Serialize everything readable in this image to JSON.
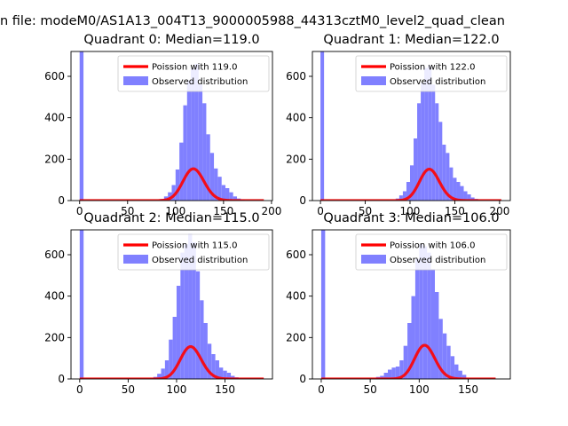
{
  "figure": {
    "suptitle": "n file: modeM0/AS1A13_004T13_9000005988_44313cztM0_level2_quad_clean"
  },
  "colors": {
    "observed": "#8080ff",
    "poisson": "#ff0000",
    "poisson_overlap": "#ff8080"
  },
  "chart_data": [
    {
      "type": "bar",
      "title": "Quadrant 0: Median=119.0",
      "xlim": [
        -9,
        201
      ],
      "ylim": [
        0,
        720
      ],
      "xticks": [
        0,
        50,
        100,
        150,
        200
      ],
      "yticks": [
        0,
        200,
        400,
        600
      ],
      "legend": {
        "placement": "top-right",
        "entries": [
          "Poission with 119.0",
          "Observed distribution"
        ]
      },
      "bin_width": 4.0,
      "hist_x": [
        0,
        84,
        88,
        92,
        96,
        100,
        104,
        108,
        112,
        116,
        120,
        124,
        128,
        132,
        136,
        140,
        144,
        148,
        152,
        156,
        160,
        164,
        168
      ],
      "hist_y": [
        720,
        8,
        20,
        40,
        75,
        150,
        280,
        460,
        580,
        640,
        660,
        560,
        470,
        320,
        230,
        155,
        115,
        75,
        60,
        40,
        20,
        10,
        5
      ],
      "poisson_mu": 119.0,
      "poisson_scale": 4200,
      "poisson_xmax": 192
    },
    {
      "type": "bar",
      "title": "Quadrant 1: Median=122.0",
      "xlim": [
        -9,
        212
      ],
      "ylim": [
        0,
        720
      ],
      "xticks": [
        0,
        50,
        100,
        150,
        200
      ],
      "yticks": [
        0,
        200,
        400,
        600
      ],
      "legend": {
        "placement": "top-right",
        "entries": [
          "Poission with 122.0",
          "Observed distribution"
        ]
      },
      "bin_width": 4.0,
      "hist_x": [
        0,
        84,
        88,
        92,
        96,
        100,
        104,
        108,
        112,
        116,
        120,
        124,
        128,
        132,
        136,
        140,
        144,
        148,
        152,
        156,
        160,
        164,
        168,
        172
      ],
      "hist_y": [
        720,
        10,
        25,
        45,
        90,
        170,
        300,
        470,
        570,
        640,
        650,
        560,
        470,
        380,
        270,
        230,
        160,
        110,
        90,
        70,
        45,
        30,
        15,
        8
      ],
      "poisson_mu": 122.0,
      "poisson_scale": 4200,
      "poisson_xmax": 202
    },
    {
      "type": "bar",
      "title": "Quadrant 2: Median=115.0",
      "xlim": [
        -9,
        199
      ],
      "ylim": [
        0,
        720
      ],
      "xticks": [
        0,
        50,
        100,
        150
      ],
      "yticks": [
        0,
        200,
        400,
        600
      ],
      "legend": {
        "placement": "top-right",
        "entries": [
          "Poission with 115.0",
          "Observed distribution"
        ]
      },
      "bin_width": 4.0,
      "hist_x": [
        0,
        76,
        80,
        84,
        88,
        92,
        96,
        100,
        104,
        108,
        112,
        116,
        120,
        124,
        128,
        132,
        136,
        140,
        144,
        148,
        152,
        156,
        160
      ],
      "hist_y": [
        720,
        10,
        25,
        50,
        90,
        190,
        300,
        450,
        610,
        650,
        700,
        660,
        520,
        380,
        270,
        170,
        120,
        90,
        55,
        40,
        30,
        15,
        8
      ],
      "poisson_mu": 115.0,
      "poisson_scale": 4200,
      "poisson_xmax": 190
    },
    {
      "type": "bar",
      "title": "Quadrant 3: Median=106.0",
      "xlim": [
        -9,
        193
      ],
      "ylim": [
        0,
        720
      ],
      "xticks": [
        0,
        50,
        100,
        150
      ],
      "yticks": [
        0,
        200,
        400,
        600
      ],
      "legend": {
        "placement": "top-right",
        "entries": [
          "Poission with 106.0",
          "Observed distribution"
        ]
      },
      "bin_width": 4.0,
      "hist_x": [
        0,
        56,
        60,
        64,
        68,
        72,
        76,
        80,
        84,
        88,
        92,
        96,
        100,
        104,
        108,
        112,
        116,
        120,
        124,
        128,
        132,
        136,
        140,
        144
      ],
      "hist_y": [
        720,
        10,
        15,
        30,
        45,
        55,
        60,
        90,
        160,
        270,
        400,
        580,
        650,
        640,
        610,
        530,
        420,
        290,
        220,
        160,
        110,
        70,
        40,
        20
      ],
      "poisson_mu": 106.0,
      "poisson_scale": 4200,
      "poisson_xmax": 178
    }
  ]
}
